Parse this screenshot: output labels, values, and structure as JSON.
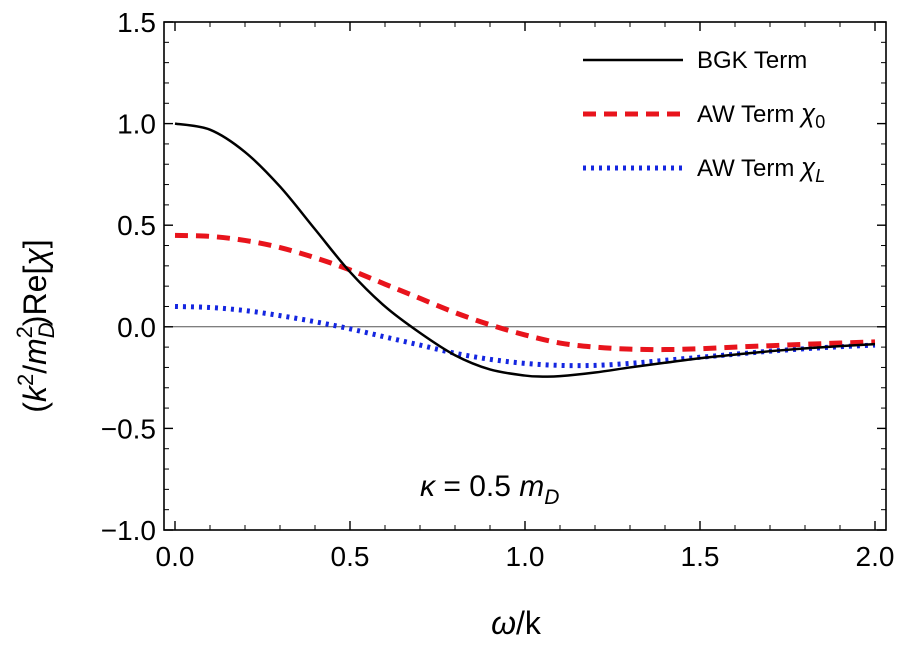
{
  "chart_data": {
    "type": "line",
    "title": "",
    "xlabel": {
      "main": "ω",
      "tail": "/k"
    },
    "ylabel": {
      "open": "(",
      "k": "k",
      "k_exp": "2",
      "slash": "/",
      "m": "m",
      "m_sub": "D",
      "m_exp": "2",
      "close": ")Re[",
      "chi": "χ",
      "end": "]"
    },
    "xlim": [
      0,
      2
    ],
    "ylim": [
      -1,
      1.5
    ],
    "x_ticks": [
      0.0,
      0.5,
      1.0,
      1.5,
      2.0
    ],
    "x_tick_labels": [
      "0.0",
      "0.5",
      "1.0",
      "1.5",
      "2.0"
    ],
    "y_ticks": [
      -1.0,
      -0.5,
      0.0,
      0.5,
      1.0,
      1.5
    ],
    "y_tick_labels": [
      "−1.0",
      "−0.5",
      "0.0",
      "0.5",
      "1.0",
      "1.5"
    ],
    "grid": false,
    "zero_line": true,
    "legend_position": "top-right",
    "annotation": {
      "kappa": "κ",
      "eq": " = 0.5 ",
      "m": "m",
      "sub": "D"
    },
    "series": [
      {
        "name": "BGK Term",
        "legend": {
          "text": "BGK Term",
          "sym": "",
          "sub": ""
        },
        "color": "#000000",
        "style": "solid",
        "x": [
          0,
          0.1,
          0.2,
          0.3,
          0.4,
          0.5,
          0.6,
          0.7,
          0.8,
          0.9,
          1.0,
          1.05,
          1.1,
          1.2,
          1.3,
          1.4,
          1.5,
          1.6,
          1.7,
          1.8,
          1.9,
          2.0
        ],
        "y": [
          1.0,
          0.97,
          0.86,
          0.69,
          0.48,
          0.27,
          0.1,
          -0.03,
          -0.14,
          -0.21,
          -0.24,
          -0.245,
          -0.243,
          -0.225,
          -0.2,
          -0.177,
          -0.155,
          -0.137,
          -0.12,
          -0.106,
          -0.095,
          -0.085
        ]
      },
      {
        "name": "AW Term χ0",
        "legend": {
          "text": "AW Term ",
          "sym": "χ",
          "sub": "0"
        },
        "color": "#e8141c",
        "style": "dashed",
        "x": [
          0,
          0.1,
          0.2,
          0.3,
          0.4,
          0.5,
          0.6,
          0.7,
          0.8,
          0.9,
          1.0,
          1.1,
          1.2,
          1.3,
          1.4,
          1.5,
          1.6,
          1.7,
          1.8,
          1.9,
          2.0
        ],
        "y": [
          0.45,
          0.445,
          0.425,
          0.39,
          0.34,
          0.28,
          0.21,
          0.14,
          0.07,
          0.01,
          -0.04,
          -0.08,
          -0.1,
          -0.11,
          -0.112,
          -0.108,
          -0.1,
          -0.093,
          -0.086,
          -0.08,
          -0.074
        ]
      },
      {
        "name": "AW Term χL",
        "legend": {
          "text": "AW Term ",
          "sym": "χ",
          "sub": "L"
        },
        "color": "#1426e0",
        "style": "dotted",
        "x": [
          0,
          0.1,
          0.2,
          0.3,
          0.4,
          0.5,
          0.6,
          0.7,
          0.8,
          0.9,
          1.0,
          1.1,
          1.2,
          1.3,
          1.4,
          1.5,
          1.6,
          1.7,
          1.8,
          1.9,
          2.0
        ],
        "y": [
          0.1,
          0.095,
          0.08,
          0.055,
          0.025,
          -0.01,
          -0.05,
          -0.09,
          -0.13,
          -0.16,
          -0.18,
          -0.19,
          -0.19,
          -0.18,
          -0.165,
          -0.15,
          -0.135,
          -0.12,
          -0.108,
          -0.098,
          -0.09
        ]
      }
    ]
  }
}
